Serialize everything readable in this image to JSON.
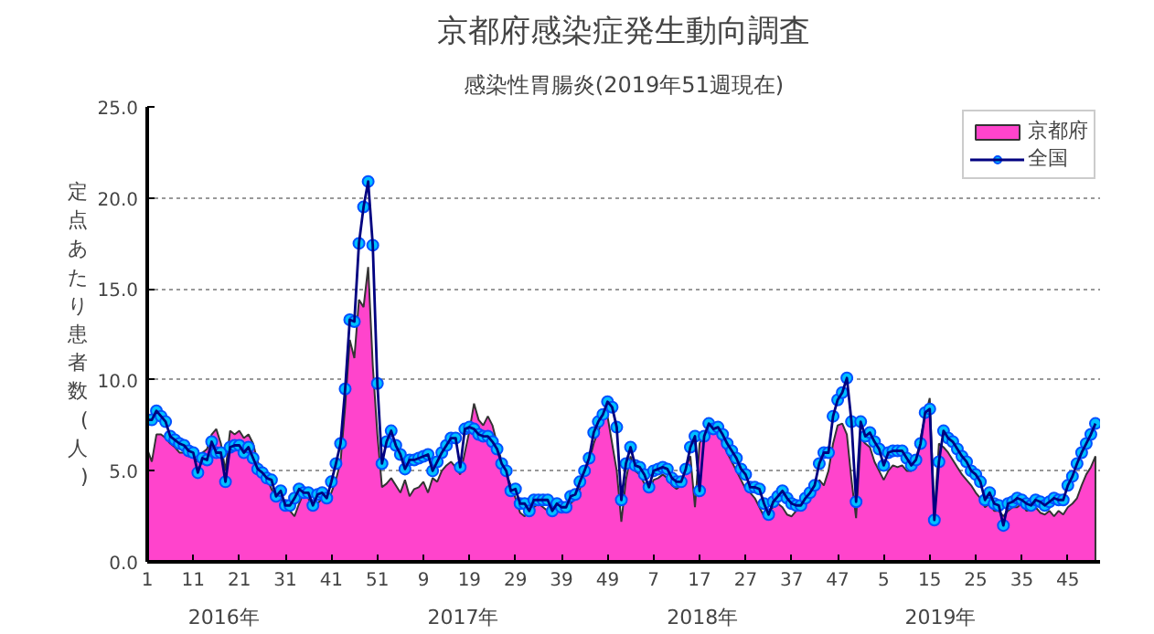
{
  "chart_data": {
    "type": "area",
    "title": "京都府感染症発生動向調査",
    "subtitle": "感染性胃腸炎(2019年51週現在)",
    "ylabel": "定点あたり患者数(人)",
    "categories": [
      "1",
      null,
      null,
      null,
      null,
      null,
      null,
      null,
      null,
      null,
      "11",
      null,
      null,
      null,
      null,
      null,
      null,
      null,
      null,
      null,
      "21",
      null,
      null,
      null,
      null,
      null,
      null,
      null,
      null,
      null,
      "31",
      null,
      null,
      null,
      null,
      null,
      null,
      null,
      null,
      null,
      "41",
      null,
      null,
      null,
      null,
      null,
      null,
      null,
      null,
      null,
      "51",
      null,
      null,
      null,
      null,
      null,
      null,
      null,
      null,
      null,
      "9",
      null,
      null,
      null,
      null,
      null,
      null,
      null,
      null,
      null,
      "19",
      null,
      null,
      null,
      null,
      null,
      null,
      null,
      null,
      null,
      "29",
      null,
      null,
      null,
      null,
      null,
      null,
      null,
      null,
      null,
      "39",
      null,
      null,
      null,
      null,
      null,
      null,
      null,
      null,
      null,
      "49",
      null,
      null,
      null,
      null,
      null,
      null,
      null,
      null,
      null,
      "7",
      null,
      null,
      null,
      null,
      null,
      null,
      null,
      null,
      null,
      "17",
      null,
      null,
      null,
      null,
      null,
      null,
      null,
      null,
      null,
      "27",
      null,
      null,
      null,
      null,
      null,
      null,
      null,
      null,
      null,
      "37",
      null,
      null,
      null,
      null,
      null,
      null,
      null,
      null,
      null,
      "47",
      null,
      null,
      null,
      null,
      null,
      null,
      null,
      null,
      null,
      "5",
      null,
      null,
      null,
      null,
      null,
      null,
      null,
      null,
      null,
      "15",
      null,
      null,
      null,
      null,
      null,
      null,
      null,
      null,
      null,
      "25",
      null,
      null,
      null,
      null,
      null,
      null,
      null,
      null,
      null,
      "35",
      null,
      null,
      null,
      null,
      null,
      null,
      null,
      null,
      null,
      "45",
      null,
      null,
      null,
      null,
      null,
      null
    ],
    "series": [
      {
        "name": "京都府",
        "color": "#ff44cc",
        "values": [
          6.2,
          5.5,
          7.0,
          7.0,
          6.8,
          6.5,
          6.3,
          6.0,
          6.0,
          5.8,
          5.8,
          5.5,
          6.0,
          6.2,
          7.0,
          7.3,
          6.5,
          5.0,
          7.2,
          7.0,
          7.2,
          6.8,
          7.0,
          6.5,
          5.5,
          5.0,
          4.6,
          4.0,
          3.5,
          3.5,
          3.0,
          2.8,
          2.5,
          3.2,
          3.8,
          3.5,
          3.0,
          3.2,
          3.5,
          3.2,
          3.8,
          4.5,
          5.5,
          8.5,
          12.2,
          11.2,
          14.4,
          14.0,
          16.2,
          10.8,
          7.0,
          4.1,
          4.3,
          4.6,
          4.2,
          3.8,
          4.5,
          3.6,
          4.0,
          4.1,
          4.4,
          3.8,
          4.6,
          4.4,
          5.0,
          5.3,
          5.5,
          5.2,
          4.8,
          6.0,
          7.2,
          8.7,
          7.8,
          7.5,
          8.0,
          7.5,
          6.5,
          5.5,
          4.8,
          4.2,
          3.5,
          2.7,
          2.5,
          2.8,
          3.0,
          3.2,
          3.0,
          2.8,
          2.5,
          2.8,
          3.0,
          3.2,
          3.2,
          3.5,
          4.0,
          5.0,
          5.5,
          6.5,
          7.2,
          7.8,
          8.0,
          6.5,
          5.0,
          2.2,
          4.5,
          5.8,
          5.0,
          4.8,
          4.3,
          3.8,
          4.5,
          4.6,
          4.8,
          4.6,
          4.2,
          4.0,
          4.2,
          5.2,
          5.8,
          3.0,
          6.5,
          7.2,
          7.0,
          7.5,
          7.2,
          6.5,
          6.0,
          5.5,
          5.0,
          4.5,
          4.0,
          3.8,
          3.5,
          3.0,
          2.5,
          2.8,
          3.0,
          3.2,
          3.0,
          2.6,
          2.5,
          2.8,
          3.0,
          3.2,
          3.5,
          4.0,
          4.5,
          4.2,
          5.0,
          6.5,
          7.5,
          7.6,
          7.0,
          4.5,
          2.4,
          6.8,
          6.5,
          6.3,
          5.5,
          5.0,
          4.5,
          5.0,
          5.3,
          5.2,
          5.3,
          5.0,
          5.0,
          5.5,
          6.8,
          8.0,
          9.0,
          2.5,
          6.5,
          6.3,
          6.0,
          5.6,
          5.2,
          4.8,
          4.5,
          4.2,
          3.8,
          3.5,
          3.0,
          3.2,
          2.8,
          2.8,
          2.5,
          2.8,
          3.0,
          3.0,
          3.2,
          2.8,
          2.9,
          3.0,
          2.7,
          2.6,
          2.8,
          2.5,
          2.8,
          2.6,
          3.0,
          3.2,
          3.5,
          4.2,
          4.8,
          5.2,
          5.8
        ]
      },
      {
        "name": "全国",
        "type": "line",
        "color": "#00c0ff",
        "marker": "circle",
        "values": [
          7.8,
          7.8,
          8.3,
          8.0,
          7.7,
          6.9,
          6.7,
          6.5,
          6.4,
          6.1,
          6.0,
          4.9,
          5.7,
          5.6,
          6.6,
          6.0,
          6.0,
          4.4,
          6.3,
          6.4,
          6.4,
          6.0,
          6.3,
          5.7,
          5.1,
          4.9,
          4.6,
          4.5,
          3.6,
          3.9,
          3.1,
          3.1,
          3.5,
          4.0,
          3.8,
          3.8,
          3.1,
          3.7,
          3.8,
          3.5,
          4.4,
          5.4,
          6.5,
          9.5,
          13.3,
          13.2,
          17.5,
          19.5,
          20.9,
          17.4,
          9.8,
          5.4,
          6.6,
          7.2,
          6.4,
          5.9,
          5.1,
          5.6,
          5.6,
          5.7,
          5.8,
          5.9,
          5.0,
          5.5,
          6.0,
          6.4,
          6.8,
          6.8,
          5.2,
          7.3,
          7.4,
          7.3,
          7.0,
          6.9,
          6.9,
          6.6,
          6.2,
          5.4,
          5.0,
          3.9,
          4.0,
          3.2,
          3.2,
          2.8,
          3.4,
          3.4,
          3.4,
          3.4,
          2.8,
          3.2,
          3.0,
          3.0,
          3.6,
          3.7,
          4.4,
          5.0,
          5.7,
          7.1,
          7.7,
          8.1,
          8.8,
          8.5,
          7.4,
          3.4,
          5.4,
          6.3,
          5.3,
          5.2,
          4.8,
          4.1,
          5.0,
          5.1,
          5.2,
          5.1,
          4.6,
          4.4,
          4.4,
          5.1,
          6.3,
          6.9,
          3.9,
          6.9,
          7.6,
          7.3,
          7.4,
          7.0,
          6.5,
          6.1,
          5.7,
          5.1,
          4.8,
          4.1,
          4.1,
          4.0,
          3.2,
          2.6,
          3.3,
          3.6,
          3.9,
          3.5,
          3.2,
          3.1,
          3.1,
          3.5,
          3.8,
          4.2,
          5.4,
          6.0,
          6.0,
          8.0,
          8.9,
          9.3,
          10.1,
          7.7,
          3.3,
          7.7,
          6.9,
          7.1,
          6.6,
          6.2,
          5.3,
          6.0,
          6.1,
          6.1,
          6.1,
          5.7,
          5.3,
          5.6,
          6.5,
          8.2,
          8.4,
          2.3,
          5.5,
          7.2,
          6.8,
          6.6,
          6.2,
          5.8,
          5.5,
          5.0,
          4.8,
          4.4,
          3.4,
          3.8,
          3.2,
          3.1,
          2.0,
          3.2,
          3.3,
          3.5,
          3.4,
          3.2,
          3.1,
          3.4,
          3.3,
          3.1,
          3.3,
          3.5,
          3.4,
          3.4,
          4.2,
          4.7,
          5.4,
          6.0,
          6.5,
          7.0,
          7.6
        ]
      }
    ],
    "ylim": [
      0,
      25
    ],
    "yticks": [
      {
        "value": 0,
        "label": "0.0"
      },
      {
        "value": 5,
        "label": "5.0"
      },
      {
        "value": 10,
        "label": "10.0"
      },
      {
        "value": 15,
        "label": "15.0"
      },
      {
        "value": 20,
        "label": "20.0"
      },
      {
        "value": 25,
        "label": "25.0"
      }
    ],
    "annotations": [
      "2016年",
      "2017年",
      "2018年",
      "2019年"
    ],
    "grid": "y",
    "legend": "top right",
    "line_style": "solid"
  }
}
